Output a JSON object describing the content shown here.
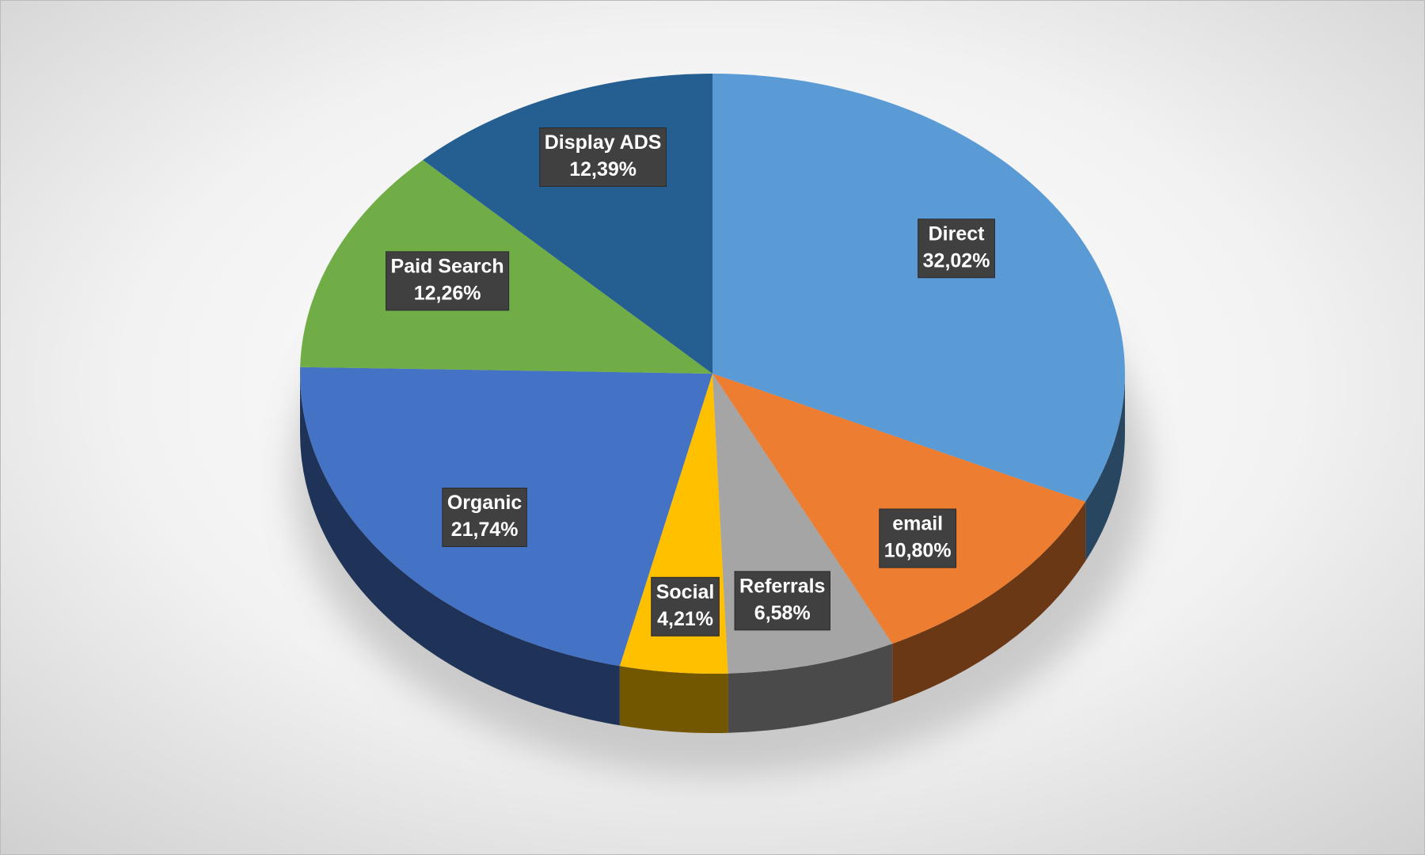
{
  "chart_data": {
    "type": "pie",
    "categories": [
      "Direct",
      "email",
      "Referrals",
      "Social",
      "Organic",
      "Paid Search",
      "Display ADS"
    ],
    "values": [
      32.02,
      10.8,
      6.58,
      4.21,
      21.74,
      12.26,
      12.39
    ],
    "value_labels": [
      "32,02%",
      "10,80%",
      "6,58%",
      "4,21%",
      "21,74%",
      "12,26%",
      "12,39%"
    ],
    "colors": [
      "#5b9bd5",
      "#ed7d31",
      "#a5a5a5",
      "#ffc000",
      "#4472c4",
      "#70ad47",
      "#255e91"
    ]
  }
}
